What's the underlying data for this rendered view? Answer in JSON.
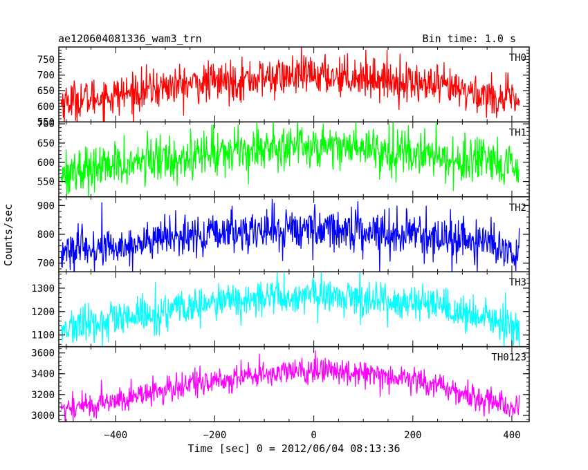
{
  "header": {
    "title": "ae120604081336_wam3_trn",
    "bin_time": "Bin time: 1.0 s"
  },
  "chart_data": {
    "type": "line",
    "xlabel": "Time [sec] 0 = 2012/06/04 08:13:36",
    "ylabel": "Counts/sec",
    "xlim": [
      -515,
      435
    ],
    "x_ticks": [
      -400,
      -200,
      0,
      200,
      400
    ],
    "x_tick_labels": [
      "−400",
      "−200",
      "0",
      "200",
      "400"
    ],
    "x_range_data": [
      -510,
      415
    ],
    "grid": false,
    "panels": [
      {
        "name": "TH0",
        "color": "#ff0000",
        "ylim": [
          550,
          790
        ],
        "y_ticks": [
          550,
          600,
          650,
          700,
          750
        ],
        "y_tick_labels": [
          "550",
          "600",
          "650",
          "700",
          "750"
        ],
        "profile": [
          [
            -510,
            615
          ],
          [
            -400,
            635
          ],
          [
            -300,
            662
          ],
          [
            -200,
            678
          ],
          [
            -100,
            690
          ],
          [
            0,
            700
          ],
          [
            100,
            695
          ],
          [
            200,
            675
          ],
          [
            300,
            650
          ],
          [
            415,
            615
          ]
        ],
        "noise": 32
      },
      {
        "name": "TH1",
        "color": "#00ff00",
        "ylim": [
          510,
          705
        ],
        "y_ticks": [
          550,
          600,
          650,
          700
        ],
        "y_tick_labels": [
          "550",
          "600",
          "650",
          "700"
        ],
        "profile": [
          [
            -510,
            575
          ],
          [
            -400,
            590
          ],
          [
            -300,
            610
          ],
          [
            -200,
            625
          ],
          [
            -100,
            640
          ],
          [
            0,
            645
          ],
          [
            100,
            640
          ],
          [
            200,
            625
          ],
          [
            300,
            605
          ],
          [
            415,
            580
          ]
        ],
        "noise": 30
      },
      {
        "name": "TH2",
        "color": "#0000ff",
        "ylim": [
          670,
          930
        ],
        "y_ticks": [
          700,
          800,
          900
        ],
        "y_tick_labels": [
          "700",
          "800",
          "900"
        ],
        "profile": [
          [
            -510,
            740
          ],
          [
            -400,
            755
          ],
          [
            -300,
            785
          ],
          [
            -200,
            800
          ],
          [
            -100,
            815
          ],
          [
            0,
            820
          ],
          [
            100,
            815
          ],
          [
            200,
            800
          ],
          [
            300,
            780
          ],
          [
            415,
            745
          ]
        ],
        "noise": 36
      },
      {
        "name": "TH3",
        "color": "#00ffff",
        "ylim": [
          1050,
          1370
        ],
        "y_ticks": [
          1100,
          1200,
          1300
        ],
        "y_tick_labels": [
          "1100",
          "1200",
          "1300"
        ],
        "profile": [
          [
            -510,
            1125
          ],
          [
            -400,
            1160
          ],
          [
            -300,
            1200
          ],
          [
            -200,
            1235
          ],
          [
            -100,
            1260
          ],
          [
            0,
            1265
          ],
          [
            100,
            1260
          ],
          [
            200,
            1235
          ],
          [
            300,
            1190
          ],
          [
            415,
            1135
          ]
        ],
        "noise": 40
      },
      {
        "name": "TH0123",
        "color": "#ff00ff",
        "ylim": [
          2940,
          3660
        ],
        "y_ticks": [
          3000,
          3200,
          3400,
          3600
        ],
        "y_tick_labels": [
          "3000",
          "3200",
          "3400",
          "3600"
        ],
        "profile": [
          [
            -510,
            3060
          ],
          [
            -400,
            3140
          ],
          [
            -300,
            3250
          ],
          [
            -200,
            3330
          ],
          [
            -100,
            3400
          ],
          [
            0,
            3430
          ],
          [
            100,
            3420
          ],
          [
            200,
            3350
          ],
          [
            300,
            3210
          ],
          [
            415,
            3070
          ]
        ],
        "noise": 65
      }
    ]
  }
}
